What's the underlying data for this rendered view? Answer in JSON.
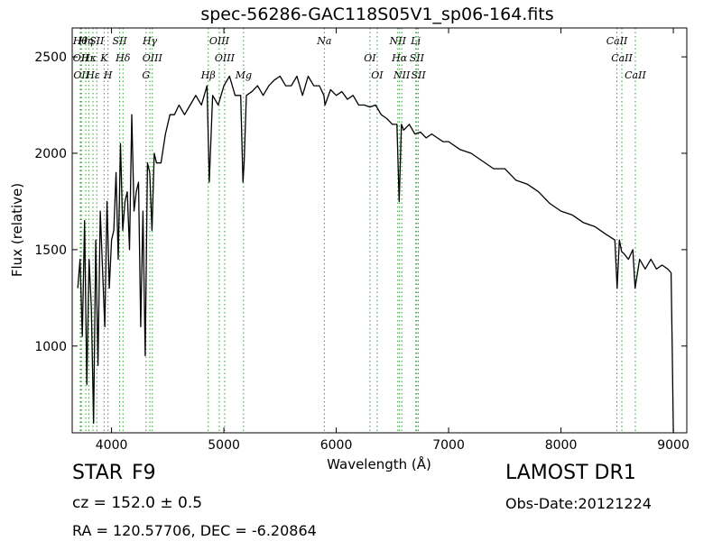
{
  "chart_data": {
    "type": "line",
    "title": "spec-56286-GAC118S05V1_sp06-164.fits",
    "xlabel": "Wavelength (Å)",
    "ylabel": "Flux (relative)",
    "xlim": [
      3650,
      9120
    ],
    "ylim": [
      550,
      2650
    ],
    "xticks": [
      4000,
      5000,
      6000,
      7000,
      8000,
      9000
    ],
    "yticks": [
      1000,
      1500,
      2000,
      2500
    ],
    "grid": false,
    "line_color": "#000000",
    "marker_color": "#2ca02c",
    "series": [
      {
        "x": [
          3700,
          3720,
          3740,
          3760,
          3780,
          3800,
          3820,
          3840,
          3860,
          3880,
          3900,
          3920,
          3940,
          3960,
          3980,
          4000,
          4020,
          4040,
          4060,
          4080,
          4100,
          4120,
          4140,
          4160,
          4180,
          4200,
          4220,
          4240,
          4260,
          4280,
          4300,
          4320,
          4340,
          4360,
          4380,
          4400,
          4440,
          4480,
          4520,
          4560,
          4600,
          4650,
          4700,
          4750,
          4800,
          4850,
          4870,
          4900,
          4950,
          5000,
          5050,
          5100,
          5150,
          5170,
          5180,
          5200,
          5250,
          5300,
          5350,
          5400,
          5450,
          5500,
          5550,
          5600,
          5650,
          5700,
          5750,
          5800,
          5850,
          5890,
          5900,
          5950,
          6000,
          6050,
          6100,
          6150,
          6200,
          6250,
          6300,
          6350,
          6400,
          6450,
          6500,
          6540,
          6560,
          6580,
          6600,
          6650,
          6700,
          6750,
          6800,
          6850,
          6900,
          6950,
          7000,
          7100,
          7200,
          7300,
          7400,
          7500,
          7600,
          7700,
          7800,
          7900,
          8000,
          8100,
          8200,
          8300,
          8400,
          8480,
          8500,
          8520,
          8540,
          8560,
          8600,
          8640,
          8660,
          8700,
          8750,
          8800,
          8850,
          8900,
          8950,
          8980,
          8990,
          9000
        ],
        "y": [
          1300,
          1450,
          1050,
          1650,
          800,
          1450,
          1200,
          600,
          1550,
          900,
          1700,
          1400,
          1100,
          1750,
          1300,
          1550,
          1600,
          1900,
          1450,
          2050,
          1600,
          1750,
          1800,
          1500,
          2200,
          1700,
          1800,
          1850,
          1100,
          1700,
          950,
          1950,
          1900,
          1600,
          2000,
          1950,
          1950,
          2100,
          2200,
          2200,
          2250,
          2200,
          2250,
          2300,
          2250,
          2350,
          1850,
          2300,
          2250,
          2350,
          2400,
          2300,
          2300,
          1850,
          1950,
          2300,
          2320,
          2350,
          2300,
          2350,
          2380,
          2400,
          2350,
          2350,
          2400,
          2300,
          2400,
          2350,
          2350,
          2300,
          2250,
          2330,
          2300,
          2320,
          2280,
          2300,
          2250,
          2250,
          2240,
          2250,
          2200,
          2180,
          2150,
          2150,
          1750,
          2150,
          2120,
          2150,
          2100,
          2110,
          2080,
          2100,
          2080,
          2060,
          2060,
          2020,
          2000,
          1960,
          1920,
          1920,
          1860,
          1840,
          1800,
          1740,
          1700,
          1680,
          1640,
          1620,
          1580,
          1550,
          1300,
          1550,
          1490,
          1480,
          1450,
          1500,
          1300,
          1450,
          1400,
          1450,
          1400,
          1420,
          1400,
          1380,
          1000,
          500
        ]
      }
    ],
    "line_markers": [
      {
        "x": 3722,
        "labels": [
          "Hθ"
        ]
      },
      {
        "x": 3727,
        "labels": [
          "OII"
        ]
      },
      {
        "x": 3732,
        "labels": [
          "OII"
        ]
      },
      {
        "x": 3771,
        "labels": [
          "Hη"
        ]
      },
      {
        "x": 3798,
        "labels": [
          "Hκ"
        ]
      },
      {
        "x": 3835,
        "labels": [
          "Hε"
        ]
      },
      {
        "x": 3869,
        "labels": [
          "SII"
        ]
      },
      {
        "x": 3934,
        "labels": [
          "K"
        ]
      },
      {
        "x": 3969,
        "labels": [
          "H"
        ]
      },
      {
        "x": 4073,
        "labels": [
          "SII"
        ]
      },
      {
        "x": 4102,
        "labels": [
          "Hδ"
        ]
      },
      {
        "x": 4307,
        "labels": [
          "G"
        ]
      },
      {
        "x": 4341,
        "labels": [
          "Hγ"
        ]
      },
      {
        "x": 4363,
        "labels": [
          "OIII"
        ]
      },
      {
        "x": 4861,
        "labels": [
          "Hβ"
        ]
      },
      {
        "x": 4959,
        "labels": [
          "OIII"
        ]
      },
      {
        "x": 5007,
        "labels": [
          "OIII"
        ]
      },
      {
        "x": 5175,
        "labels": [
          "Mg"
        ]
      },
      {
        "x": 5894,
        "labels": [
          "Na"
        ]
      },
      {
        "x": 6300,
        "labels": [
          "OI"
        ]
      },
      {
        "x": 6364,
        "labels": [
          "OI"
        ]
      },
      {
        "x": 6548,
        "labels": [
          "NII"
        ]
      },
      {
        "x": 6563,
        "labels": [
          "Hα"
        ]
      },
      {
        "x": 6583,
        "labels": [
          "NII"
        ]
      },
      {
        "x": 6708,
        "labels": [
          "Li"
        ]
      },
      {
        "x": 6717,
        "labels": [
          "SII"
        ]
      },
      {
        "x": 6731,
        "labels": [
          "SII"
        ]
      },
      {
        "x": 8498,
        "labels": [
          "CaII"
        ]
      },
      {
        "x": 8542,
        "labels": [
          "CaII"
        ]
      },
      {
        "x": 8662,
        "labels": [
          "CaII"
        ]
      }
    ]
  },
  "info": {
    "class": "STAR",
    "subclass": "F9",
    "cz": "cz = 152.0 ± 0.5",
    "radec": "RA = 120.57706, DEC = -6.20864",
    "release": "LAMOST DR1",
    "obs_date": "Obs-Date:20121224"
  }
}
